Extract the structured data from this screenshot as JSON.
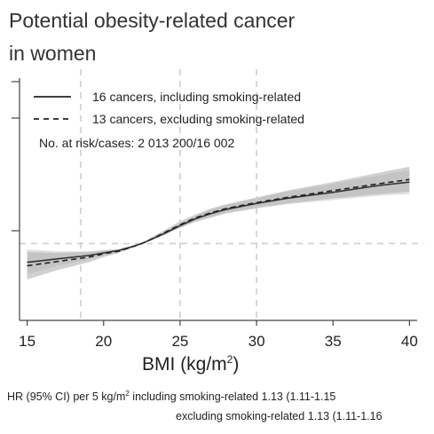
{
  "chart_data": {
    "type": "line",
    "title_line1": "Potential obesity-related cancer",
    "title_line2": "in women",
    "xlabel_pre": "BMI (kg/m",
    "xlabel_sup": "2",
    "xlabel_post": ")",
    "xlim": [
      14.5,
      40.5
    ],
    "ylim": [
      0.55,
      2.0
    ],
    "xticks": [
      15,
      20,
      25,
      30,
      35,
      40
    ],
    "reference_lines_x": [
      18.5,
      25,
      30
    ],
    "reference_line_y": 1.0,
    "legend_placement": "top-left",
    "series": [
      {
        "name": "16 cancers, including smoking-related",
        "style": "solid",
        "x": [
          15,
          17,
          19,
          20,
          21,
          22,
          22.5,
          23,
          24,
          25,
          26,
          27,
          28,
          30,
          32,
          35,
          38,
          40
        ],
        "y": [
          0.89,
          0.91,
          0.93,
          0.945,
          0.96,
          0.985,
          1.0,
          1.02,
          1.06,
          1.105,
          1.145,
          1.175,
          1.2,
          1.235,
          1.265,
          1.3,
          1.34,
          1.36
        ],
        "ci_low": [
          0.82,
          0.87,
          0.905,
          0.93,
          0.95,
          0.98,
          1.0,
          1.015,
          1.05,
          1.09,
          1.125,
          1.15,
          1.175,
          1.205,
          1.23,
          1.255,
          1.28,
          1.29
        ],
        "ci_high": [
          0.965,
          0.955,
          0.955,
          0.96,
          0.97,
          0.99,
          1.0,
          1.025,
          1.07,
          1.12,
          1.165,
          1.2,
          1.225,
          1.265,
          1.305,
          1.35,
          1.4,
          1.43
        ]
      },
      {
        "name": "13 cancers, excluding smoking-related",
        "style": "dashed",
        "x": [
          15,
          17,
          19,
          20,
          21,
          22,
          22.5,
          23,
          24,
          25,
          26,
          27,
          28,
          30,
          32,
          35,
          38,
          40
        ],
        "y": [
          0.87,
          0.895,
          0.92,
          0.94,
          0.955,
          0.985,
          1.0,
          1.02,
          1.065,
          1.11,
          1.15,
          1.18,
          1.205,
          1.24,
          1.27,
          1.31,
          1.35,
          1.375
        ],
        "ci_low": [
          0.79,
          0.845,
          0.89,
          0.92,
          0.945,
          0.98,
          1.0,
          1.015,
          1.055,
          1.095,
          1.13,
          1.155,
          1.18,
          1.21,
          1.235,
          1.265,
          1.29,
          1.305
        ],
        "ci_high": [
          0.95,
          0.945,
          0.95,
          0.96,
          0.965,
          0.99,
          1.0,
          1.03,
          1.08,
          1.13,
          1.17,
          1.205,
          1.23,
          1.27,
          1.31,
          1.36,
          1.415,
          1.45
        ]
      }
    ],
    "legend_note": "No. at risk/cases: 2 013 200/16 002",
    "footnote": {
      "line1_pre": "HR (95% CI) per 5 kg/m",
      "line1_sup": "2",
      "line1_post": " including smoking-related 1.13 (1.11-1.15",
      "line2": "excluding smoking-related 1.13 (1.11-1.16"
    }
  }
}
